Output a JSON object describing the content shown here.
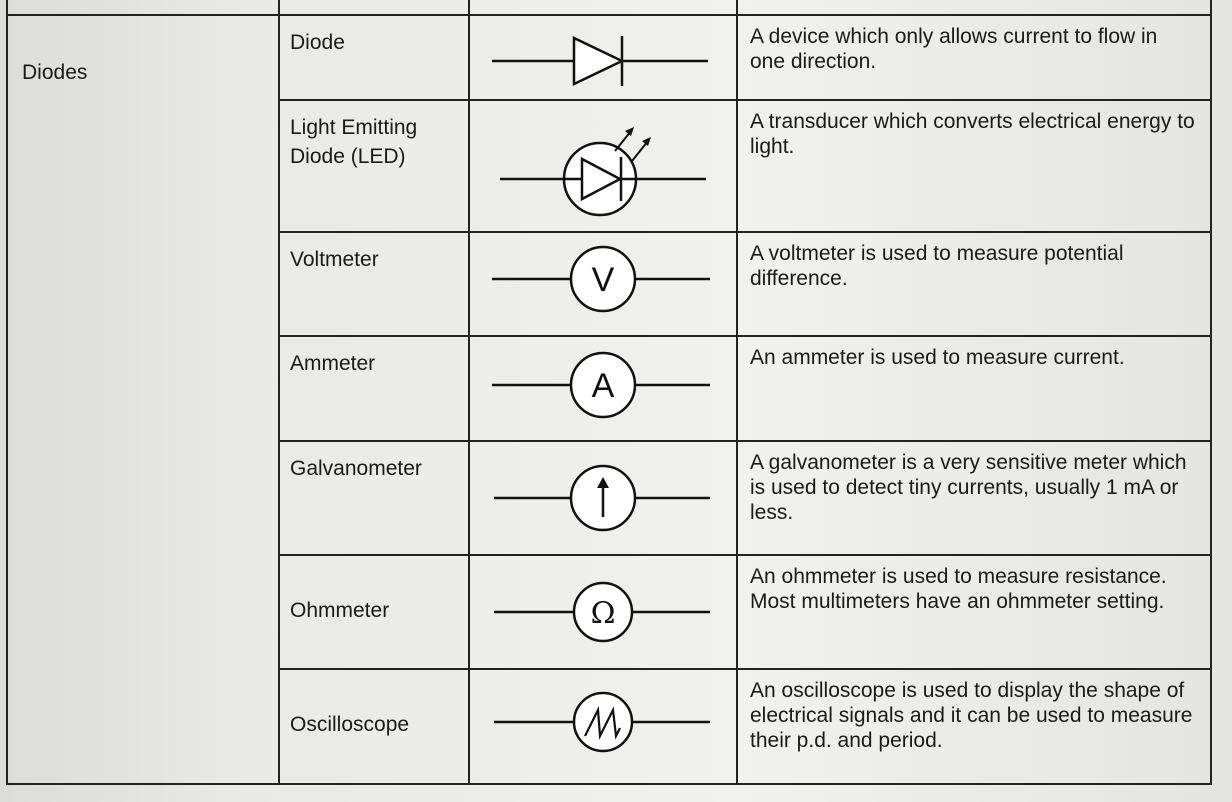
{
  "group_label": "Diodes",
  "rows": [
    {
      "name": "Diode",
      "description": "A device which only allows current to flow in one direction.",
      "symbol_icon": "diode-symbol"
    },
    {
      "name": "Light Emitting Diode (LED)",
      "description": "A transducer which converts electrical energy to light.",
      "symbol_icon": "led-symbol"
    },
    {
      "name": "Voltmeter",
      "description": "A voltmeter is used to measure potential difference.",
      "symbol_icon": "voltmeter-symbol",
      "symbol_letter": "V"
    },
    {
      "name": "Ammeter",
      "description": "An ammeter is used to measure current.",
      "symbol_icon": "ammeter-symbol",
      "symbol_letter": "A"
    },
    {
      "name": "Galvanometer",
      "description": "A galvanometer is a very sensitive meter which is used to detect tiny currents, usually 1 mA or less.",
      "symbol_icon": "galvanometer-symbol"
    },
    {
      "name": "Ohmmeter",
      "description": "An ohmmeter is used to measure resistance. Most multimeters have an ohmmeter setting.",
      "symbol_icon": "ohmmeter-symbol",
      "symbol_letter": "Ω"
    },
    {
      "name": "Oscilloscope",
      "description": "An oscilloscope is used to display the shape of electrical signals and it can be used to measure their p.d. and period.",
      "symbol_icon": "oscilloscope-symbol"
    }
  ]
}
